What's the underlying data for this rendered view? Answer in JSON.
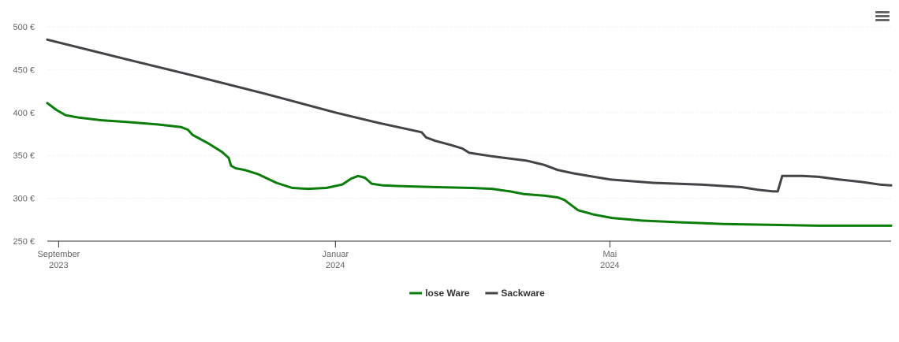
{
  "menu": {
    "icon": "hamburger-menu-icon"
  },
  "chart_data": {
    "type": "line",
    "title": "",
    "xlabel": "",
    "ylabel": "",
    "ylim": [
      250,
      500
    ],
    "xlim": [
      "2023-08-27",
      "2024-09-02"
    ],
    "y_ticks": [
      250,
      300,
      350,
      400,
      450,
      500
    ],
    "y_tick_suffix": " €",
    "x_ticks": [
      {
        "date": "2023-09-01",
        "month": "September",
        "year": "2023"
      },
      {
        "date": "2024-01-01",
        "month": "Januar",
        "year": "2024"
      },
      {
        "date": "2024-05-01",
        "month": "Mai",
        "year": "2024"
      }
    ],
    "grid": true,
    "legend_position": "bottom-center",
    "series": [
      {
        "name": "lose Ware",
        "color": "#0a7d0a",
        "points": [
          [
            "2023-08-27",
            411
          ],
          [
            "2023-08-31",
            403
          ],
          [
            "2023-09-04",
            397
          ],
          [
            "2023-09-10",
            394
          ],
          [
            "2023-09-20",
            391
          ],
          [
            "2023-10-01",
            389
          ],
          [
            "2023-10-15",
            386
          ],
          [
            "2023-10-25",
            383
          ],
          [
            "2023-10-28",
            380
          ],
          [
            "2023-10-30",
            374
          ],
          [
            "2023-11-06",
            364
          ],
          [
            "2023-11-12",
            354
          ],
          [
            "2023-11-15",
            347
          ],
          [
            "2023-11-16",
            338
          ],
          [
            "2023-11-18",
            335
          ],
          [
            "2023-11-22",
            333
          ],
          [
            "2023-11-28",
            328
          ],
          [
            "2023-12-06",
            318
          ],
          [
            "2023-12-13",
            312
          ],
          [
            "2023-12-20",
            311
          ],
          [
            "2023-12-28",
            312
          ],
          [
            "2024-01-04",
            316
          ],
          [
            "2024-01-08",
            323
          ],
          [
            "2024-01-11",
            326
          ],
          [
            "2024-01-14",
            324
          ],
          [
            "2024-01-17",
            317
          ],
          [
            "2024-01-22",
            315
          ],
          [
            "2024-02-01",
            314
          ],
          [
            "2024-02-15",
            313
          ],
          [
            "2024-03-01",
            312
          ],
          [
            "2024-03-10",
            311
          ],
          [
            "2024-03-18",
            308
          ],
          [
            "2024-03-24",
            305
          ],
          [
            "2024-04-02",
            303
          ],
          [
            "2024-04-08",
            301
          ],
          [
            "2024-04-11",
            298
          ],
          [
            "2024-04-17",
            286
          ],
          [
            "2024-04-24",
            281
          ],
          [
            "2024-05-02",
            277
          ],
          [
            "2024-05-15",
            274
          ],
          [
            "2024-06-01",
            272
          ],
          [
            "2024-06-20",
            270
          ],
          [
            "2024-07-10",
            269
          ],
          [
            "2024-08-01",
            268
          ],
          [
            "2024-09-02",
            268
          ]
        ]
      },
      {
        "name": "Sackware",
        "color": "#434348",
        "points": [
          [
            "2023-08-27",
            485
          ],
          [
            "2023-10-01",
            462
          ],
          [
            "2023-11-01",
            442
          ],
          [
            "2023-12-01",
            422
          ],
          [
            "2024-01-01",
            400
          ],
          [
            "2024-01-20",
            388
          ],
          [
            "2024-02-08",
            377
          ],
          [
            "2024-02-10",
            371
          ],
          [
            "2024-02-14",
            367
          ],
          [
            "2024-02-21",
            362
          ],
          [
            "2024-02-26",
            358
          ],
          [
            "2024-02-29",
            353
          ],
          [
            "2024-03-10",
            349
          ],
          [
            "2024-03-25",
            344
          ],
          [
            "2024-04-02",
            339
          ],
          [
            "2024-04-08",
            333
          ],
          [
            "2024-04-15",
            329
          ],
          [
            "2024-05-01",
            322
          ],
          [
            "2024-05-20",
            318
          ],
          [
            "2024-06-10",
            316
          ],
          [
            "2024-06-28",
            313
          ],
          [
            "2024-07-05",
            310
          ],
          [
            "2024-07-12",
            308
          ],
          [
            "2024-07-14",
            308
          ],
          [
            "2024-07-16",
            326
          ],
          [
            "2024-07-25",
            326
          ],
          [
            "2024-08-01",
            325
          ],
          [
            "2024-08-10",
            322
          ],
          [
            "2024-08-20",
            319
          ],
          [
            "2024-08-28",
            316
          ],
          [
            "2024-09-02",
            315
          ]
        ]
      }
    ]
  }
}
